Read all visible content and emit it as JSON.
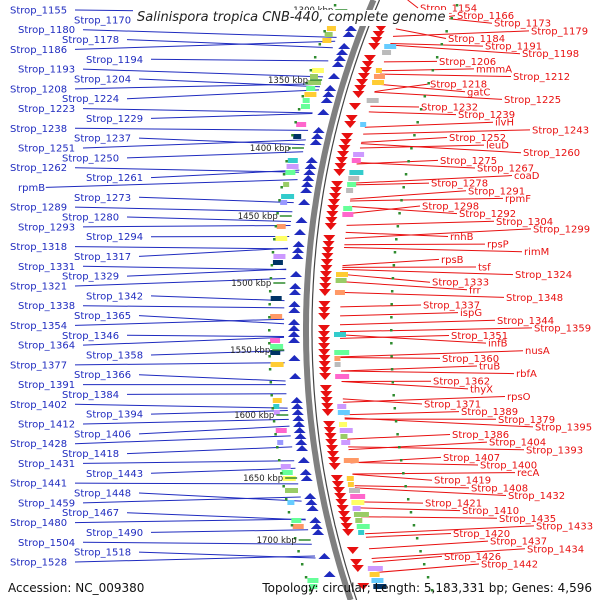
{
  "title": "Salinispora tropica CNB-440, complete genome",
  "accession_label": "Accession: NC_009380",
  "topology_label": "Topology: circular; Length: 5,183,331 bp; Genes: 4,596",
  "colors": {
    "forward": "#1f2bbf",
    "reverse": "#e81010",
    "backbone": "#808080",
    "tick": "#2e8b2e"
  },
  "kbp_ticks": [
    "1300 kbp",
    "1350 kbp",
    "1400 kbp",
    "1450 kbp",
    "1500 kbp",
    "1550 kbp",
    "1600 kbp",
    "1650 kbp",
    "1700 kbp"
  ],
  "left_genes": [
    "Strop_1155",
    "Strop_1170",
    "Strop_1180",
    "Strop_1178",
    "Strop_1186",
    "Strop_1194",
    "Strop_1193",
    "Strop_1204",
    "Strop_1208",
    "Strop_1224",
    "Strop_1223",
    "Strop_1229",
    "Strop_1238",
    "Strop_1237",
    "Strop_1251",
    "Strop_1250",
    "Strop_1262",
    "Strop_1261",
    "rpmB",
    "Strop_1273",
    "Strop_1289",
    "Strop_1280",
    "Strop_1293",
    "Strop_1294",
    "Strop_1318",
    "Strop_1317",
    "Strop_1331",
    "Strop_1329",
    "Strop_1321",
    "Strop_1342",
    "Strop_1338",
    "Strop_1365",
    "Strop_1354",
    "Strop_1346",
    "Strop_1364",
    "Strop_1358",
    "Strop_1377",
    "Strop_1366",
    "Strop_1391",
    "Strop_1384",
    "Strop_1402",
    "Strop_1394",
    "Strop_1412",
    "Strop_1406",
    "Strop_1428",
    "Strop_1418",
    "Strop_1431",
    "Strop_1443",
    "Strop_1441",
    "Strop_1448",
    "Strop_1459",
    "Strop_1467",
    "Strop_1480",
    "Strop_1490",
    "Strop_1504",
    "Strop_1518",
    "Strop_1528"
  ],
  "right_genes": [
    "Strop_1154",
    "Strop_1166",
    "Strop_1173",
    "Strop_1179",
    "Strop_1184",
    "Strop_1191",
    "Strop_1198",
    "Strop_1206",
    "mmmA",
    "Strop_1212",
    "Strop_1218",
    "gatC",
    "Strop_1225",
    "Strop_1232",
    "Strop_1239",
    "ilvH",
    "Strop_1243",
    "Strop_1252",
    "leuD",
    "Strop_1260",
    "Strop_1275",
    "Strop_1267",
    "coaD",
    "Strop_1278",
    "Strop_1291",
    "rpmF",
    "Strop_1298",
    "Strop_1292",
    "Strop_1304",
    "Strop_1299",
    "rnhB",
    "rpsP",
    "rimM",
    "rpsB",
    "tsf",
    "Strop_1324",
    "Strop_1333",
    "frr",
    "Strop_1348",
    "Strop_1337",
    "ispG",
    "Strop_1344",
    "Strop_1359",
    "Strop_1351",
    "infB",
    "nusA",
    "Strop_1360",
    "truB",
    "rbfA",
    "Strop_1362",
    "thyX",
    "rpsO",
    "Strop_1371",
    "Strop_1389",
    "Strop_1379",
    "Strop_1395",
    "Strop_1386",
    "Strop_1404",
    "Strop_1393",
    "Strop_1407",
    "Strop_1400",
    "recA",
    "Strop_1419",
    "Strop_1408",
    "Strop_1432",
    "Strop_1421",
    "Strop_1410",
    "Strop_1435",
    "Strop_1433",
    "Strop_1420",
    "Strop_1437",
    "Strop_1434",
    "Strop_1426",
    "Strop_1442"
  ]
}
